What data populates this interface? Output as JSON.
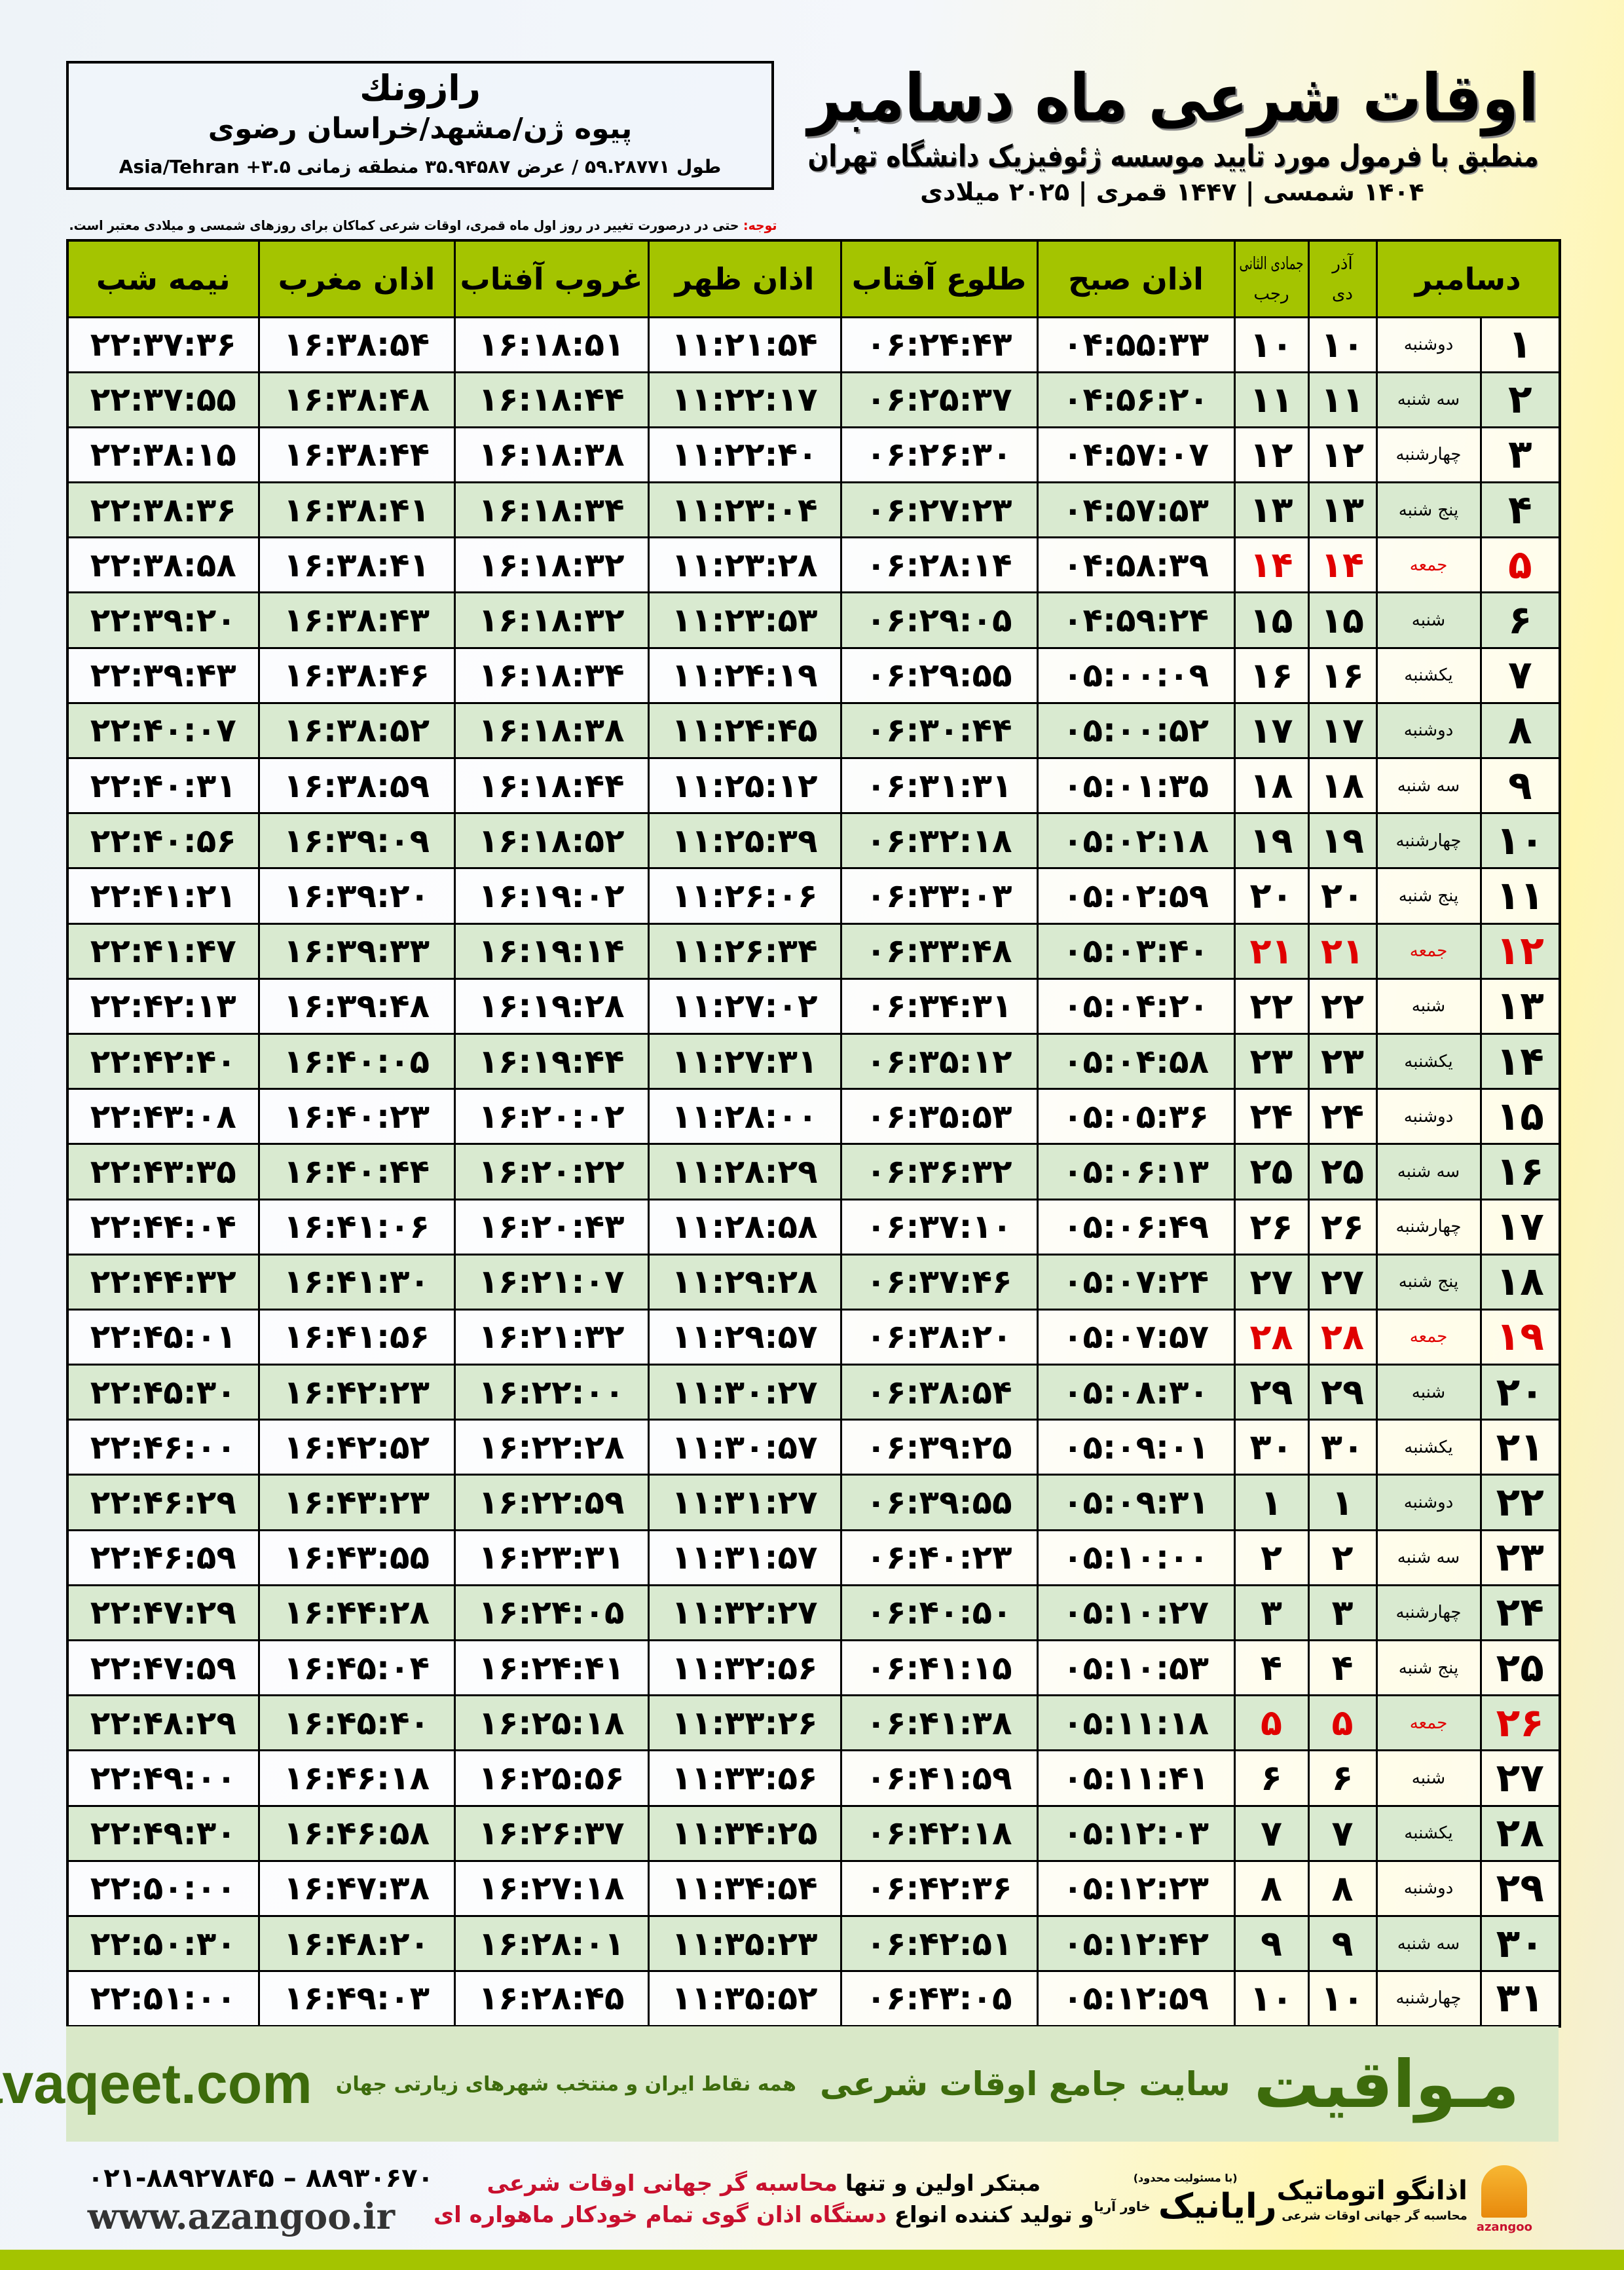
{
  "location": {
    "name": "رازونك",
    "path": "پیوه ژن/مشهد/خراسان رضوی",
    "coords": "طول ۵۹.۲۸۷۷۱ / عرض ۳۵.۹۴۵۸۷ منطقه زمانی ۳.۵+ Asia/Tehran"
  },
  "header": {
    "title": "اوقات شرعی ماه دسامبر",
    "subtitle": "منطبق با فرمول مورد تایید موسسه ژئوفیزیک دانشگاه تهران",
    "dateline": "۱۴۰۴ شمسی | ۱۴۴۷ قمری | ۲۰۲۵ میلادی"
  },
  "note": {
    "label": "توجه:",
    "text": " حتی در درصورت تغییر در روز اول ماه قمری، اوقات شرعی کماکان برای روزهای شمسی و میلادی معتبر است."
  },
  "table": {
    "columns": {
      "month": "دسامبر",
      "shamsi_top": "آذر",
      "shamsi_bottom": "دی",
      "qamari_top": "جمادی الثانی",
      "qamari_bottom": "رجب",
      "sobh": "اذان صبح",
      "tolu": "طلوع آفتاب",
      "zohr": "اذان ظهر",
      "ghorub": "غروب آفتاب",
      "maghreb": "اذان مغرب",
      "nimeshab": "نیمه شب"
    },
    "friday_color": "#e00000",
    "rows": [
      {
        "d": "۱",
        "w": "دوشنبه",
        "s": "۱۰",
        "q": "۱۰",
        "t": [
          "۰۴:۵۵:۳۳",
          "۰۶:۲۴:۴۳",
          "۱۱:۲۱:۵۴",
          "۱۶:۱۸:۵۱",
          "۱۶:۳۸:۵۴",
          "۲۲:۳۷:۳۶"
        ]
      },
      {
        "d": "۲",
        "w": "سه شنبه",
        "s": "۱۱",
        "q": "۱۱",
        "t": [
          "۰۴:۵۶:۲۰",
          "۰۶:۲۵:۳۷",
          "۱۱:۲۲:۱۷",
          "۱۶:۱۸:۴۴",
          "۱۶:۳۸:۴۸",
          "۲۲:۳۷:۵۵"
        ]
      },
      {
        "d": "۳",
        "w": "چهارشنبه",
        "s": "۱۲",
        "q": "۱۲",
        "t": [
          "۰۴:۵۷:۰۷",
          "۰۶:۲۶:۳۰",
          "۱۱:۲۲:۴۰",
          "۱۶:۱۸:۳۸",
          "۱۶:۳۸:۴۴",
          "۲۲:۳۸:۱۵"
        ]
      },
      {
        "d": "۴",
        "w": "پنج شنبه",
        "s": "۱۳",
        "q": "۱۳",
        "t": [
          "۰۴:۵۷:۵۳",
          "۰۶:۲۷:۲۳",
          "۱۱:۲۳:۰۴",
          "۱۶:۱۸:۳۴",
          "۱۶:۳۸:۴۱",
          "۲۲:۳۸:۳۶"
        ]
      },
      {
        "d": "۵",
        "w": "جمعه",
        "s": "۱۴",
        "q": "۱۴",
        "f": true,
        "t": [
          "۰۴:۵۸:۳۹",
          "۰۶:۲۸:۱۴",
          "۱۱:۲۳:۲۸",
          "۱۶:۱۸:۳۲",
          "۱۶:۳۸:۴۱",
          "۲۲:۳۸:۵۸"
        ]
      },
      {
        "d": "۶",
        "w": "شنبه",
        "s": "۱۵",
        "q": "۱۵",
        "t": [
          "۰۴:۵۹:۲۴",
          "۰۶:۲۹:۰۵",
          "۱۱:۲۳:۵۳",
          "۱۶:۱۸:۳۲",
          "۱۶:۳۸:۴۳",
          "۲۲:۳۹:۲۰"
        ]
      },
      {
        "d": "۷",
        "w": "یکشنبه",
        "s": "۱۶",
        "q": "۱۶",
        "t": [
          "۰۵:۰۰:۰۹",
          "۰۶:۲۹:۵۵",
          "۱۱:۲۴:۱۹",
          "۱۶:۱۸:۳۴",
          "۱۶:۳۸:۴۶",
          "۲۲:۳۹:۴۳"
        ]
      },
      {
        "d": "۸",
        "w": "دوشنبه",
        "s": "۱۷",
        "q": "۱۷",
        "t": [
          "۰۵:۰۰:۵۲",
          "۰۶:۳۰:۴۴",
          "۱۱:۲۴:۴۵",
          "۱۶:۱۸:۳۸",
          "۱۶:۳۸:۵۲",
          "۲۲:۴۰:۰۷"
        ]
      },
      {
        "d": "۹",
        "w": "سه شنبه",
        "s": "۱۸",
        "q": "۱۸",
        "t": [
          "۰۵:۰۱:۳۵",
          "۰۶:۳۱:۳۱",
          "۱۱:۲۵:۱۲",
          "۱۶:۱۸:۴۴",
          "۱۶:۳۸:۵۹",
          "۲۲:۴۰:۳۱"
        ]
      },
      {
        "d": "۱۰",
        "w": "چهارشنبه",
        "s": "۱۹",
        "q": "۱۹",
        "t": [
          "۰۵:۰۲:۱۸",
          "۰۶:۳۲:۱۸",
          "۱۱:۲۵:۳۹",
          "۱۶:۱۸:۵۲",
          "۱۶:۳۹:۰۹",
          "۲۲:۴۰:۵۶"
        ]
      },
      {
        "d": "۱۱",
        "w": "پنج شنبه",
        "s": "۲۰",
        "q": "۲۰",
        "t": [
          "۰۵:۰۲:۵۹",
          "۰۶:۳۳:۰۳",
          "۱۱:۲۶:۰۶",
          "۱۶:۱۹:۰۲",
          "۱۶:۳۹:۲۰",
          "۲۲:۴۱:۲۱"
        ]
      },
      {
        "d": "۱۲",
        "w": "جمعه",
        "s": "۲۱",
        "q": "۲۱",
        "f": true,
        "t": [
          "۰۵:۰۳:۴۰",
          "۰۶:۳۳:۴۸",
          "۱۱:۲۶:۳۴",
          "۱۶:۱۹:۱۴",
          "۱۶:۳۹:۳۳",
          "۲۲:۴۱:۴۷"
        ]
      },
      {
        "d": "۱۳",
        "w": "شنبه",
        "s": "۲۲",
        "q": "۲۲",
        "t": [
          "۰۵:۰۴:۲۰",
          "۰۶:۳۴:۳۱",
          "۱۱:۲۷:۰۲",
          "۱۶:۱۹:۲۸",
          "۱۶:۳۹:۴۸",
          "۲۲:۴۲:۱۳"
        ]
      },
      {
        "d": "۱۴",
        "w": "یکشنبه",
        "s": "۲۳",
        "q": "۲۳",
        "t": [
          "۰۵:۰۴:۵۸",
          "۰۶:۳۵:۱۲",
          "۱۱:۲۷:۳۱",
          "۱۶:۱۹:۴۴",
          "۱۶:۴۰:۰۵",
          "۲۲:۴۲:۴۰"
        ]
      },
      {
        "d": "۱۵",
        "w": "دوشنبه",
        "s": "۲۴",
        "q": "۲۴",
        "t": [
          "۰۵:۰۵:۳۶",
          "۰۶:۳۵:۵۳",
          "۱۱:۲۸:۰۰",
          "۱۶:۲۰:۰۲",
          "۱۶:۴۰:۲۳",
          "۲۲:۴۳:۰۸"
        ]
      },
      {
        "d": "۱۶",
        "w": "سه شنبه",
        "s": "۲۵",
        "q": "۲۵",
        "t": [
          "۰۵:۰۶:۱۳",
          "۰۶:۳۶:۳۲",
          "۱۱:۲۸:۲۹",
          "۱۶:۲۰:۲۲",
          "۱۶:۴۰:۴۴",
          "۲۲:۴۳:۳۵"
        ]
      },
      {
        "d": "۱۷",
        "w": "چهارشنبه",
        "s": "۲۶",
        "q": "۲۶",
        "t": [
          "۰۵:۰۶:۴۹",
          "۰۶:۳۷:۱۰",
          "۱۱:۲۸:۵۸",
          "۱۶:۲۰:۴۳",
          "۱۶:۴۱:۰۶",
          "۲۲:۴۴:۰۴"
        ]
      },
      {
        "d": "۱۸",
        "w": "پنج شنبه",
        "s": "۲۷",
        "q": "۲۷",
        "t": [
          "۰۵:۰۷:۲۴",
          "۰۶:۳۷:۴۶",
          "۱۱:۲۹:۲۸",
          "۱۶:۲۱:۰۷",
          "۱۶:۴۱:۳۰",
          "۲۲:۴۴:۳۲"
        ]
      },
      {
        "d": "۱۹",
        "w": "جمعه",
        "s": "۲۸",
        "q": "۲۸",
        "f": true,
        "t": [
          "۰۵:۰۷:۵۷",
          "۰۶:۳۸:۲۰",
          "۱۱:۲۹:۵۷",
          "۱۶:۲۱:۳۲",
          "۱۶:۴۱:۵۶",
          "۲۲:۴۵:۰۱"
        ]
      },
      {
        "d": "۲۰",
        "w": "شنبه",
        "s": "۲۹",
        "q": "۲۹",
        "t": [
          "۰۵:۰۸:۳۰",
          "۰۶:۳۸:۵۴",
          "۱۱:۳۰:۲۷",
          "۱۶:۲۲:۰۰",
          "۱۶:۴۲:۲۳",
          "۲۲:۴۵:۳۰"
        ]
      },
      {
        "d": "۲۱",
        "w": "یکشنبه",
        "s": "۳۰",
        "q": "۳۰",
        "t": [
          "۰۵:۰۹:۰۱",
          "۰۶:۳۹:۲۵",
          "۱۱:۳۰:۵۷",
          "۱۶:۲۲:۲۸",
          "۱۶:۴۲:۵۲",
          "۲۲:۴۶:۰۰"
        ]
      },
      {
        "d": "۲۲",
        "w": "دوشنبه",
        "s": "۱",
        "q": "۱",
        "t": [
          "۰۵:۰۹:۳۱",
          "۰۶:۳۹:۵۵",
          "۱۱:۳۱:۲۷",
          "۱۶:۲۲:۵۹",
          "۱۶:۴۳:۲۳",
          "۲۲:۴۶:۲۹"
        ]
      },
      {
        "d": "۲۳",
        "w": "سه شنبه",
        "s": "۲",
        "q": "۲",
        "t": [
          "۰۵:۱۰:۰۰",
          "۰۶:۴۰:۲۳",
          "۱۱:۳۱:۵۷",
          "۱۶:۲۳:۳۱",
          "۱۶:۴۳:۵۵",
          "۲۲:۴۶:۵۹"
        ]
      },
      {
        "d": "۲۴",
        "w": "چهارشنبه",
        "s": "۳",
        "q": "۳",
        "t": [
          "۰۵:۱۰:۲۷",
          "۰۶:۴۰:۵۰",
          "۱۱:۳۲:۲۷",
          "۱۶:۲۴:۰۵",
          "۱۶:۴۴:۲۸",
          "۲۲:۴۷:۲۹"
        ]
      },
      {
        "d": "۲۵",
        "w": "پنج شنبه",
        "s": "۴",
        "q": "۴",
        "t": [
          "۰۵:۱۰:۵۳",
          "۰۶:۴۱:۱۵",
          "۱۱:۳۲:۵۶",
          "۱۶:۲۴:۴۱",
          "۱۶:۴۵:۰۴",
          "۲۲:۴۷:۵۹"
        ]
      },
      {
        "d": "۲۶",
        "w": "جمعه",
        "s": "۵",
        "q": "۵",
        "f": true,
        "t": [
          "۰۵:۱۱:۱۸",
          "۰۶:۴۱:۳۸",
          "۱۱:۳۳:۲۶",
          "۱۶:۲۵:۱۸",
          "۱۶:۴۵:۴۰",
          "۲۲:۴۸:۲۹"
        ]
      },
      {
        "d": "۲۷",
        "w": "شنبه",
        "s": "۶",
        "q": "۶",
        "t": [
          "۰۵:۱۱:۴۱",
          "۰۶:۴۱:۵۹",
          "۱۱:۳۳:۵۶",
          "۱۶:۲۵:۵۶",
          "۱۶:۴۶:۱۸",
          "۲۲:۴۹:۰۰"
        ]
      },
      {
        "d": "۲۸",
        "w": "یکشنبه",
        "s": "۷",
        "q": "۷",
        "t": [
          "۰۵:۱۲:۰۳",
          "۰۶:۴۲:۱۸",
          "۱۱:۳۴:۲۵",
          "۱۶:۲۶:۳۷",
          "۱۶:۴۶:۵۸",
          "۲۲:۴۹:۳۰"
        ]
      },
      {
        "d": "۲۹",
        "w": "دوشنبه",
        "s": "۸",
        "q": "۸",
        "t": [
          "۰۵:۱۲:۲۳",
          "۰۶:۴۲:۳۶",
          "۱۱:۳۴:۵۴",
          "۱۶:۲۷:۱۸",
          "۱۶:۴۷:۳۸",
          "۲۲:۵۰:۰۰"
        ]
      },
      {
        "d": "۳۰",
        "w": "سه شنبه",
        "s": "۹",
        "q": "۹",
        "t": [
          "۰۵:۱۲:۴۲",
          "۰۶:۴۲:۵۱",
          "۱۱:۳۵:۲۳",
          "۱۶:۲۸:۰۱",
          "۱۶:۴۸:۲۰",
          "۲۲:۵۰:۳۰"
        ]
      },
      {
        "d": "۳۱",
        "w": "چهارشنبه",
        "s": "۱۰",
        "q": "۱۰",
        "t": [
          "۰۵:۱۲:۵۹",
          "۰۶:۴۳:۰۵",
          "۱۱:۳۵:۵۲",
          "۱۶:۲۸:۴۵",
          "۱۶:۴۹:۰۳",
          "۲۲:۵۱:۰۰"
        ]
      }
    ]
  },
  "banner": {
    "brand": "مـواقیت",
    "tagline": "سایت جامع اوقات شرعی",
    "sub": "همه نقاط ایران و منتخب شهرهای زیارتی جهان",
    "url": "mavaqeet.com",
    "color": "#3d6b0c"
  },
  "footer": {
    "phone": "۰۲۱-۸۸۹۲۷۸۴۵ – ۸۸۹۳۰۶۷۰",
    "website": "www.azangoo.ir",
    "line1_a": "مبتکر اولین و تنها ",
    "line1_b": "محاسبه گر جهانی اوقات شرعی",
    "line2_a": "و تولید کننده انواع ",
    "line2_b": "دستگاه اذان گوی تمام خودکار ماهواره ای",
    "rayanik": "رایانیک",
    "rayanik_sub": "خاور آریا",
    "rayanik_note": "(با مسئولیت محدود)",
    "azangoo_fa": "اذانگو اتوماتیک",
    "azangoo_sub": "محاسبه گر جهانی اوقات شرعی",
    "azangoo_en": "azangoo"
  }
}
